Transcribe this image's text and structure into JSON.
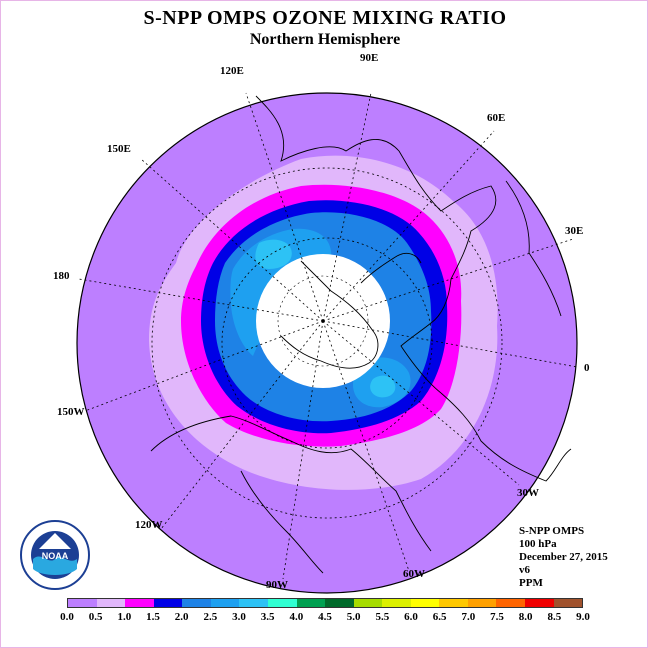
{
  "header": {
    "title": "S-NPP OMPS OZONE MIXING RATIO",
    "subtitle": "Northern Hemisphere"
  },
  "map": {
    "projection": "polar stereographic, north pole centered",
    "longitude_labels": [
      "90E",
      "60E",
      "30E",
      "0",
      "30W",
      "60W",
      "90W",
      "120W",
      "150W",
      "180",
      "150E",
      "120E"
    ],
    "colors": {
      "ocean_outer": "#bd7fff",
      "band_0_5": "#e1b7fb",
      "band_1_0": "#ff00ff",
      "band_1_5": "#0000e6",
      "band_2_0": "#1e82e6",
      "band_2_5": "#1ea0f0",
      "band_3_0": "#2dc2f5",
      "no_data": "#ffffff"
    }
  },
  "info": {
    "instrument": "S-NPP OMPS",
    "level": "100 hPa",
    "date": "December 27, 2015",
    "version": "v6",
    "units": "PPM"
  },
  "colorbar": {
    "colors": [
      "#bd7fff",
      "#e1b7fb",
      "#ff00ff",
      "#0000e6",
      "#1e82e6",
      "#1ea0f0",
      "#2dc2f5",
      "#30ffd2",
      "#00a050",
      "#006a2a",
      "#a6dc00",
      "#dcf000",
      "#ffff00",
      "#ffc800",
      "#ffa000",
      "#ff6400",
      "#f00000",
      "#a0522d"
    ],
    "ticks": [
      "0.0",
      "0.5",
      "1.0",
      "1.5",
      "2.0",
      "2.5",
      "3.0",
      "3.5",
      "4.0",
      "4.5",
      "5.0",
      "5.5",
      "6.0",
      "6.5",
      "7.0",
      "7.5",
      "8.0",
      "8.5",
      "9.0"
    ]
  },
  "logo": {
    "name": "NOAA",
    "ring_text": "NATIONAL OCEANIC AND ATMOSPHERIC ADMINISTRATION · U.S. DEPARTMENT OF COMMERCE"
  }
}
